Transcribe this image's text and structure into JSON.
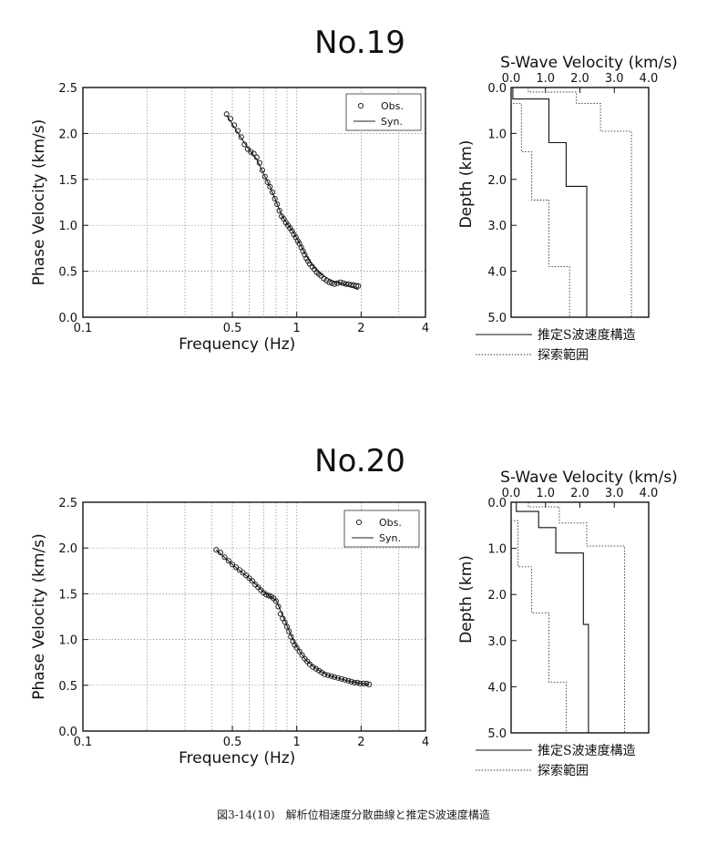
{
  "caption": "図3-14(10)　解析位相速度分散曲線と推定S波速度構造",
  "chart_data": [
    {
      "type": "scatter",
      "title": "No.19",
      "xlabel": "Frequency (Hz)",
      "ylabel": "Phase Velocity (km/s)",
      "xscale": "log",
      "xlim": [
        0.1,
        4
      ],
      "ylim": [
        0.0,
        2.5
      ],
      "xticks": [
        "0.1",
        "0.5",
        "1",
        "2",
        "4"
      ],
      "yticks": [
        "0.0",
        "0.5",
        "1.0",
        "1.5",
        "2.0",
        "2.5"
      ],
      "grid": true,
      "legend": "top-right",
      "series": [
        {
          "name": "Obs.",
          "marker": "circle",
          "x": [
            0.47,
            0.49,
            0.51,
            0.53,
            0.55,
            0.57,
            0.59,
            0.61,
            0.63,
            0.65,
            0.67,
            0.69,
            0.71,
            0.73,
            0.75,
            0.77,
            0.79,
            0.81,
            0.83,
            0.85,
            0.87,
            0.89,
            0.91,
            0.93,
            0.95,
            0.97,
            0.99,
            1.01,
            1.03,
            1.05,
            1.07,
            1.09,
            1.11,
            1.13,
            1.15,
            1.18,
            1.21,
            1.24,
            1.27,
            1.3,
            1.34,
            1.38,
            1.42,
            1.46,
            1.5,
            1.55,
            1.6,
            1.65,
            1.7,
            1.75,
            1.8,
            1.85,
            1.9,
            1.94
          ],
          "y": [
            2.21,
            2.16,
            2.09,
            2.03,
            1.96,
            1.88,
            1.83,
            1.8,
            1.78,
            1.74,
            1.68,
            1.6,
            1.53,
            1.47,
            1.42,
            1.36,
            1.29,
            1.23,
            1.16,
            1.1,
            1.07,
            1.03,
            1.0,
            0.97,
            0.94,
            0.9,
            0.87,
            0.83,
            0.8,
            0.76,
            0.72,
            0.68,
            0.64,
            0.61,
            0.58,
            0.55,
            0.52,
            0.49,
            0.47,
            0.45,
            0.42,
            0.4,
            0.38,
            0.37,
            0.36,
            0.37,
            0.38,
            0.37,
            0.36,
            0.36,
            0.35,
            0.35,
            0.34,
            0.34
          ]
        },
        {
          "name": "Syn.",
          "marker": "line",
          "x": [
            0.47,
            0.5,
            0.55,
            0.6,
            0.65,
            0.7,
            0.75,
            0.8,
            0.85,
            0.9,
            0.95,
            1.0,
            1.05,
            1.1,
            1.2,
            1.3,
            1.4,
            1.5,
            1.6,
            1.7,
            1.8,
            1.94
          ],
          "y": [
            2.2,
            2.1,
            1.95,
            1.82,
            1.72,
            1.56,
            1.42,
            1.26,
            1.11,
            1.02,
            0.95,
            0.86,
            0.77,
            0.68,
            0.55,
            0.47,
            0.42,
            0.39,
            0.37,
            0.35,
            0.33,
            0.3
          ]
        }
      ]
    },
    {
      "type": "line",
      "title": "",
      "xlabel": "S-Wave Velocity (km/s)",
      "ylabel": "Depth (km)",
      "xlim": [
        0.0,
        4.0
      ],
      "ylim": [
        5.0,
        0.0
      ],
      "xticks": [
        "0.0",
        "1.0",
        "2.0",
        "3.0",
        "4.0"
      ],
      "yticks": [
        "0.0",
        "1.0",
        "2.0",
        "3.0",
        "4.0",
        "5.0"
      ],
      "legend": "bottom",
      "series": [
        {
          "name": "推定S波速度構造",
          "style": "solid",
          "velocity": [
            0.05,
            1.1,
            1.6,
            2.2,
            3.1
          ],
          "top_depth": [
            0.0,
            0.25,
            1.2,
            2.15,
            5.0
          ]
        },
        {
          "name": "探索範囲",
          "style": "dotted",
          "lower": {
            "velocity": [
              0.0,
              0.3,
              0.6,
              1.1,
              1.7
            ],
            "top_depth": [
              0.0,
              0.35,
              1.4,
              2.45,
              3.9
            ]
          },
          "upper": {
            "velocity": [
              0.5,
              1.9,
              2.6,
              3.5,
              3.6
            ],
            "top_depth": [
              0.0,
              0.1,
              0.35,
              0.95,
              5.0
            ]
          }
        }
      ]
    },
    {
      "type": "scatter",
      "title": "No.20",
      "xlabel": "Frequency (Hz)",
      "ylabel": "Phase Velocity (km/s)",
      "xscale": "log",
      "xlim": [
        0.1,
        4
      ],
      "ylim": [
        0.0,
        2.5
      ],
      "xticks": [
        "0.1",
        "0.5",
        "1",
        "2",
        "4"
      ],
      "yticks": [
        "0.0",
        "0.5",
        "1.0",
        "1.5",
        "2.0",
        "2.5"
      ],
      "grid": true,
      "legend": "top-right",
      "series": [
        {
          "name": "Obs.",
          "marker": "circle",
          "x": [
            0.42,
            0.44,
            0.46,
            0.48,
            0.5,
            0.52,
            0.54,
            0.56,
            0.58,
            0.6,
            0.62,
            0.64,
            0.66,
            0.68,
            0.7,
            0.72,
            0.74,
            0.76,
            0.78,
            0.8,
            0.82,
            0.84,
            0.86,
            0.88,
            0.9,
            0.92,
            0.94,
            0.96,
            0.98,
            1.0,
            1.03,
            1.06,
            1.09,
            1.12,
            1.15,
            1.19,
            1.23,
            1.27,
            1.31,
            1.35,
            1.4,
            1.45,
            1.5,
            1.56,
            1.62,
            1.68,
            1.74,
            1.8,
            1.86,
            1.92,
            1.98,
            2.05,
            2.12,
            2.18
          ],
          "y": [
            1.98,
            1.95,
            1.9,
            1.86,
            1.82,
            1.79,
            1.76,
            1.73,
            1.7,
            1.67,
            1.64,
            1.6,
            1.57,
            1.54,
            1.51,
            1.49,
            1.48,
            1.47,
            1.45,
            1.42,
            1.36,
            1.28,
            1.23,
            1.19,
            1.14,
            1.09,
            1.03,
            0.98,
            0.94,
            0.91,
            0.87,
            0.83,
            0.79,
            0.76,
            0.73,
            0.7,
            0.68,
            0.66,
            0.64,
            0.62,
            0.61,
            0.6,
            0.59,
            0.58,
            0.57,
            0.56,
            0.55,
            0.54,
            0.53,
            0.53,
            0.52,
            0.52,
            0.52,
            0.51
          ]
        },
        {
          "name": "Syn.",
          "marker": "line",
          "x": [
            0.42,
            0.5,
            0.6,
            0.7,
            0.8,
            0.85,
            0.9,
            0.95,
            1.0,
            1.1,
            1.2,
            1.3,
            1.4,
            1.5,
            1.6,
            1.8,
            2.0,
            2.18
          ],
          "y": [
            1.98,
            1.82,
            1.67,
            1.52,
            1.43,
            1.29,
            1.15,
            1.02,
            0.92,
            0.78,
            0.7,
            0.65,
            0.61,
            0.59,
            0.57,
            0.54,
            0.52,
            0.51
          ]
        }
      ]
    },
    {
      "type": "line",
      "title": "",
      "xlabel": "S-Wave Velocity (km/s)",
      "ylabel": "Depth (km)",
      "xlim": [
        0.0,
        4.0
      ],
      "ylim": [
        5.0,
        0.0
      ],
      "xticks": [
        "0.0",
        "1.0",
        "2.0",
        "3.0",
        "4.0"
      ],
      "yticks": [
        "0.0",
        "1.0",
        "2.0",
        "3.0",
        "4.0",
        "5.0"
      ],
      "legend": "bottom",
      "series": [
        {
          "name": "推定S波速度構造",
          "style": "solid",
          "velocity": [
            0.15,
            0.8,
            1.3,
            2.1,
            2.25,
            2.8
          ],
          "top_depth": [
            0.0,
            0.2,
            0.55,
            1.1,
            2.65,
            5.0
          ]
        },
        {
          "name": "探索範囲",
          "style": "dotted",
          "lower": {
            "velocity": [
              0.0,
              0.2,
              0.6,
              1.1,
              1.6
            ],
            "top_depth": [
              0.0,
              0.4,
              1.4,
              2.4,
              3.9
            ]
          },
          "upper": {
            "velocity": [
              0.5,
              1.4,
              2.2,
              3.3,
              3.6
            ],
            "top_depth": [
              0.0,
              0.1,
              0.45,
              0.95,
              5.0
            ]
          }
        }
      ]
    }
  ]
}
